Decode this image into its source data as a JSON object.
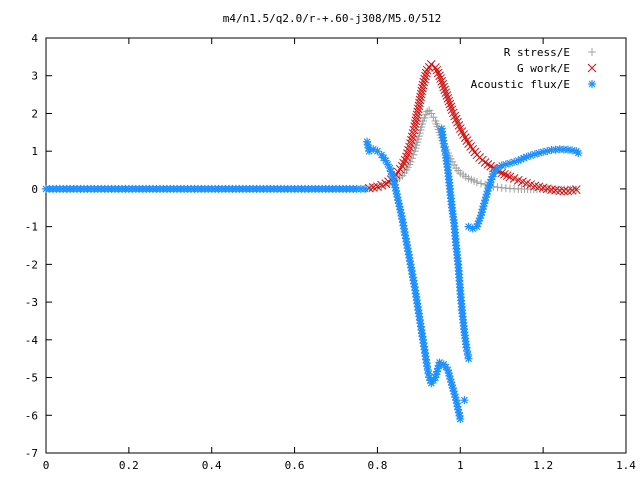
{
  "chart_data": {
    "type": "scatter",
    "title": "m4/n1.5/q2.0/r-+.60-j308/M5.0/512",
    "xlabel": "",
    "ylabel": "",
    "xlim": [
      0,
      1.4
    ],
    "ylim": [
      -7,
      4
    ],
    "x_ticks": [
      "0",
      "0.2",
      "0.4",
      "0.6",
      "0.8",
      "1",
      "1.2",
      "1.4"
    ],
    "y_ticks": [
      "4",
      "3",
      "2",
      "1",
      "0",
      "-1",
      "-2",
      "-3",
      "-4",
      "-5",
      "-6",
      "-7"
    ],
    "grid": false,
    "legend_position": "top-right",
    "series": [
      {
        "name": "R stress/E",
        "marker": "+",
        "color": "#a0a0a0",
        "points": [
          [
            0.78,
            0.01
          ],
          [
            0.8,
            0.04
          ],
          [
            0.82,
            0.09
          ],
          [
            0.84,
            0.18
          ],
          [
            0.86,
            0.35
          ],
          [
            0.87,
            0.5
          ],
          [
            0.88,
            0.72
          ],
          [
            0.89,
            1.0
          ],
          [
            0.9,
            1.4
          ],
          [
            0.91,
            1.8
          ],
          [
            0.92,
            2.05
          ],
          [
            0.925,
            2.08
          ],
          [
            0.93,
            2.0
          ],
          [
            0.94,
            1.8
          ],
          [
            0.95,
            1.5
          ],
          [
            0.96,
            1.2
          ],
          [
            0.97,
            0.95
          ],
          [
            0.98,
            0.72
          ],
          [
            0.99,
            0.55
          ],
          [
            1.0,
            0.42
          ],
          [
            1.02,
            0.28
          ],
          [
            1.04,
            0.18
          ],
          [
            1.06,
            0.11
          ],
          [
            1.08,
            0.06
          ],
          [
            1.1,
            0.03
          ],
          [
            1.12,
            0.01
          ],
          [
            1.14,
            0.0
          ],
          [
            1.2,
            -0.01
          ],
          [
            1.28,
            -0.02
          ]
        ]
      },
      {
        "name": "G work/E",
        "marker": "x",
        "color": "#d01010",
        "points": [
          [
            0.78,
            0.02
          ],
          [
            0.8,
            0.06
          ],
          [
            0.82,
            0.14
          ],
          [
            0.84,
            0.3
          ],
          [
            0.86,
            0.6
          ],
          [
            0.87,
            0.85
          ],
          [
            0.88,
            1.2
          ],
          [
            0.89,
            1.65
          ],
          [
            0.9,
            2.2
          ],
          [
            0.91,
            2.75
          ],
          [
            0.92,
            3.15
          ],
          [
            0.93,
            3.3
          ],
          [
            0.94,
            3.22
          ],
          [
            0.95,
            3.0
          ],
          [
            0.96,
            2.7
          ],
          [
            0.97,
            2.4
          ],
          [
            0.98,
            2.1
          ],
          [
            0.99,
            1.85
          ],
          [
            1.0,
            1.6
          ],
          [
            1.02,
            1.2
          ],
          [
            1.04,
            0.9
          ],
          [
            1.06,
            0.7
          ],
          [
            1.08,
            0.55
          ],
          [
            1.1,
            0.42
          ],
          [
            1.12,
            0.32
          ],
          [
            1.14,
            0.23
          ],
          [
            1.16,
            0.15
          ],
          [
            1.18,
            0.08
          ],
          [
            1.2,
            0.03
          ],
          [
            1.22,
            -0.02
          ],
          [
            1.24,
            -0.05
          ],
          [
            1.26,
            -0.06
          ],
          [
            1.28,
            -0.02
          ]
        ]
      },
      {
        "name": "Acoustic flux/E",
        "marker": "*",
        "color": "#1e90ff",
        "points": [
          [
            0.0,
            0.0
          ],
          [
            0.05,
            0.0
          ],
          [
            0.1,
            0.0
          ],
          [
            0.15,
            0.0
          ],
          [
            0.2,
            0.0
          ],
          [
            0.25,
            0.0
          ],
          [
            0.3,
            0.0
          ],
          [
            0.35,
            0.0
          ],
          [
            0.4,
            0.0
          ],
          [
            0.45,
            0.0
          ],
          [
            0.5,
            0.0
          ],
          [
            0.55,
            0.0
          ],
          [
            0.6,
            0.0
          ],
          [
            0.65,
            0.0
          ],
          [
            0.7,
            0.0
          ],
          [
            0.75,
            0.0
          ],
          [
            0.77,
            0.0
          ],
          [
            0.775,
            1.25
          ],
          [
            0.78,
            1.0
          ],
          [
            0.79,
            1.05
          ],
          [
            0.8,
            1.0
          ],
          [
            0.81,
            0.9
          ],
          [
            0.82,
            0.75
          ],
          [
            0.83,
            0.55
          ],
          [
            0.84,
            0.2
          ],
          [
            0.85,
            -0.3
          ],
          [
            0.86,
            -0.8
          ],
          [
            0.87,
            -1.4
          ],
          [
            0.88,
            -2.0
          ],
          [
            0.89,
            -2.6
          ],
          [
            0.9,
            -3.3
          ],
          [
            0.91,
            -4.0
          ],
          [
            0.92,
            -4.7
          ],
          [
            0.925,
            -5.0
          ],
          [
            0.93,
            -5.15
          ],
          [
            0.94,
            -5.0
          ],
          [
            0.95,
            -4.6
          ],
          [
            0.96,
            -4.65
          ],
          [
            0.97,
            -4.8
          ],
          [
            0.98,
            -5.2
          ],
          [
            0.99,
            -5.6
          ],
          [
            1.0,
            -6.1
          ],
          [
            0.955,
            1.6
          ],
          [
            0.96,
            1.2
          ],
          [
            0.965,
            0.9
          ],
          [
            0.97,
            0.5
          ],
          [
            0.975,
            0.0
          ],
          [
            0.98,
            -0.5
          ],
          [
            0.985,
            -0.9
          ],
          [
            0.99,
            -1.5
          ],
          [
            0.995,
            -2.0
          ],
          [
            1.0,
            -2.7
          ],
          [
            1.005,
            -3.3
          ],
          [
            1.01,
            -3.8
          ],
          [
            1.015,
            -4.2
          ],
          [
            1.02,
            -4.5
          ],
          [
            1.01,
            -5.6
          ],
          [
            1.02,
            -1.0
          ],
          [
            1.03,
            -1.05
          ],
          [
            1.04,
            -1.0
          ],
          [
            1.05,
            -0.7
          ],
          [
            1.06,
            -0.3
          ],
          [
            1.07,
            0.1
          ],
          [
            1.08,
            0.4
          ],
          [
            1.09,
            0.55
          ],
          [
            1.1,
            0.62
          ],
          [
            1.12,
            0.68
          ],
          [
            1.14,
            0.75
          ],
          [
            1.16,
            0.85
          ],
          [
            1.18,
            0.92
          ],
          [
            1.2,
            0.98
          ],
          [
            1.22,
            1.03
          ],
          [
            1.24,
            1.05
          ],
          [
            1.26,
            1.04
          ],
          [
            1.28,
            1.0
          ],
          [
            1.285,
            0.95
          ]
        ]
      }
    ]
  }
}
